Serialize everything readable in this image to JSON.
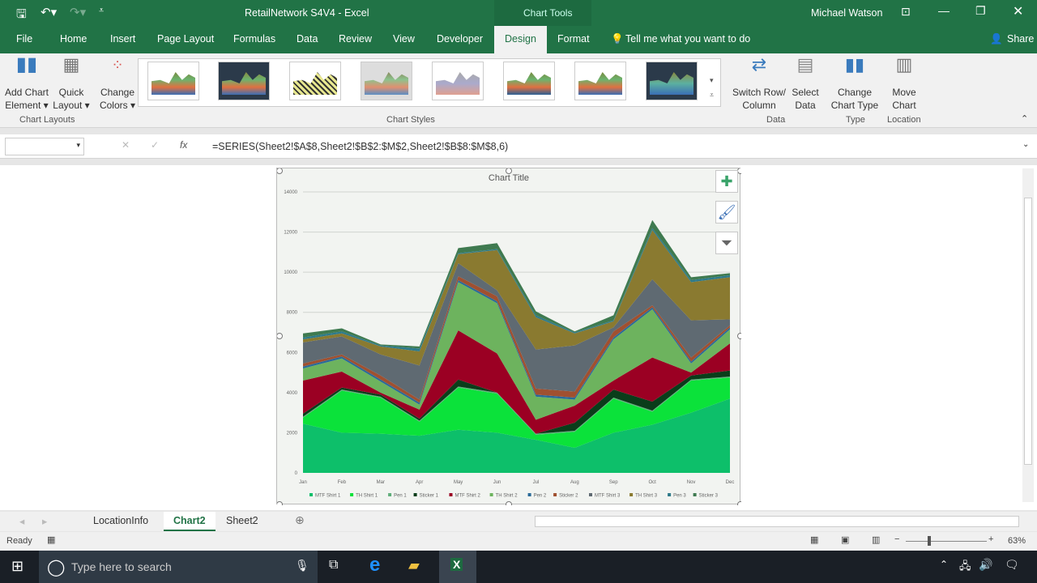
{
  "titlebar": {
    "doc_title": "RetailNetwork S4V4  -  Excel",
    "context": "Chart Tools",
    "user": "Michael Watson"
  },
  "tabs": [
    "File",
    "Home",
    "Insert",
    "Page Layout",
    "Formulas",
    "Data",
    "Review",
    "View",
    "Developer",
    "Design",
    "Format"
  ],
  "active_tab": "Design",
  "tell_me": "Tell me what you want to do",
  "share": "Share",
  "ribbon": {
    "add_chart_element": [
      "Add Chart",
      "Element ▾"
    ],
    "quick_layout": [
      "Quick",
      "Layout ▾"
    ],
    "change_colors": [
      "Change",
      "Colors ▾"
    ],
    "switch_row_col": [
      "Switch Row/",
      "Column"
    ],
    "select_data": [
      "Select",
      "Data"
    ],
    "change_chart_type": [
      "Change",
      "Chart Type"
    ],
    "move_chart": [
      "Move",
      "Chart"
    ],
    "groups": {
      "chart_layouts": "Chart Layouts",
      "chart_styles": "Chart Styles",
      "data": "Data",
      "type": "Type",
      "location": "Location"
    }
  },
  "formula_bar": {
    "name_box": "",
    "fx": "fx",
    "formula": "=SERIES(Sheet2!$A$8,Sheet2!$B$2:$M$2,Sheet2!$B$8:$M$8,6)"
  },
  "chart_data": {
    "type": "area",
    "stacked": true,
    "title": "Chart Title",
    "categories": [
      "Jan",
      "Feb",
      "Mar",
      "Apr",
      "May",
      "Jun",
      "Jul",
      "Aug",
      "Sep",
      "Oct",
      "Nov",
      "Dec"
    ],
    "ylim": [
      0,
      14000
    ],
    "yticks": [
      "0",
      "2000",
      "4000",
      "6000",
      "8000",
      "10000",
      "12000",
      "14000"
    ],
    "grid": true,
    "legend_position": "bottom",
    "series": [
      {
        "name": "MTF Shirt 1",
        "color": "#0dbf6a",
        "values": [
          2450,
          2000,
          1950,
          1850,
          2150,
          2000,
          1650,
          1250,
          2000,
          2400,
          3000,
          3700
        ]
      },
      {
        "name": "TH Shirt 1",
        "color": "#0be23a",
        "values": [
          300,
          2100,
          1800,
          700,
          2100,
          1950,
          250,
          800,
          1700,
          650,
          1600,
          1050
        ]
      },
      {
        "name": "Pen 1",
        "color": "#5fae7a",
        "values": [
          50,
          50,
          50,
          50,
          50,
          50,
          50,
          50,
          50,
          50,
          50,
          50
        ]
      },
      {
        "name": "Sticker 1",
        "color": "#0a3d1a",
        "values": [
          150,
          100,
          100,
          100,
          350,
          0,
          0,
          400,
          400,
          450,
          200,
          300
        ]
      },
      {
        "name": "MTF Shirt 2",
        "color": "#9b0023",
        "values": [
          1650,
          800,
          100,
          450,
          2450,
          1950,
          700,
          850,
          450,
          2200,
          150,
          1350
        ]
      },
      {
        "name": "TH Shirt 2",
        "color": "#6db35e",
        "values": [
          600,
          650,
          550,
          250,
          2400,
          2500,
          1150,
          300,
          2050,
          2400,
          450,
          700
        ]
      },
      {
        "name": "Pen 2",
        "color": "#2a6a98",
        "values": [
          100,
          100,
          100,
          100,
          100,
          100,
          100,
          100,
          100,
          100,
          100,
          100
        ]
      },
      {
        "name": "Sticker 2",
        "color": "#a05030",
        "values": [
          150,
          100,
          200,
          150,
          200,
          250,
          300,
          300,
          300,
          100,
          200,
          100
        ]
      },
      {
        "name": "MTF Shirt 3",
        "color": "#5f6a72",
        "values": [
          1050,
          900,
          1050,
          1700,
          650,
          300,
          1950,
          2300,
          200,
          1300,
          1850,
          300
        ]
      },
      {
        "name": "TH Shirt 3",
        "color": "#8a7a30",
        "values": [
          150,
          150,
          400,
          700,
          450,
          2000,
          1600,
          600,
          300,
          2450,
          1900,
          2100
        ]
      },
      {
        "name": "Pen 3",
        "color": "#2e7a8a",
        "values": [
          100,
          100,
          50,
          150,
          50,
          50,
          100,
          50,
          50,
          100,
          100,
          100
        ]
      },
      {
        "name": "Sticker 3",
        "color": "#3f7a50",
        "values": [
          200,
          150,
          50,
          100,
          250,
          300,
          200,
          50,
          250,
          400,
          150,
          100
        ]
      }
    ]
  },
  "sheet_tabs": [
    "LocationInfo",
    "Chart2",
    "Sheet2"
  ],
  "active_sheet": "Chart2",
  "status": {
    "ready": "Ready",
    "zoom": "63%"
  },
  "taskbar": {
    "search_placeholder": "Type here to search"
  }
}
